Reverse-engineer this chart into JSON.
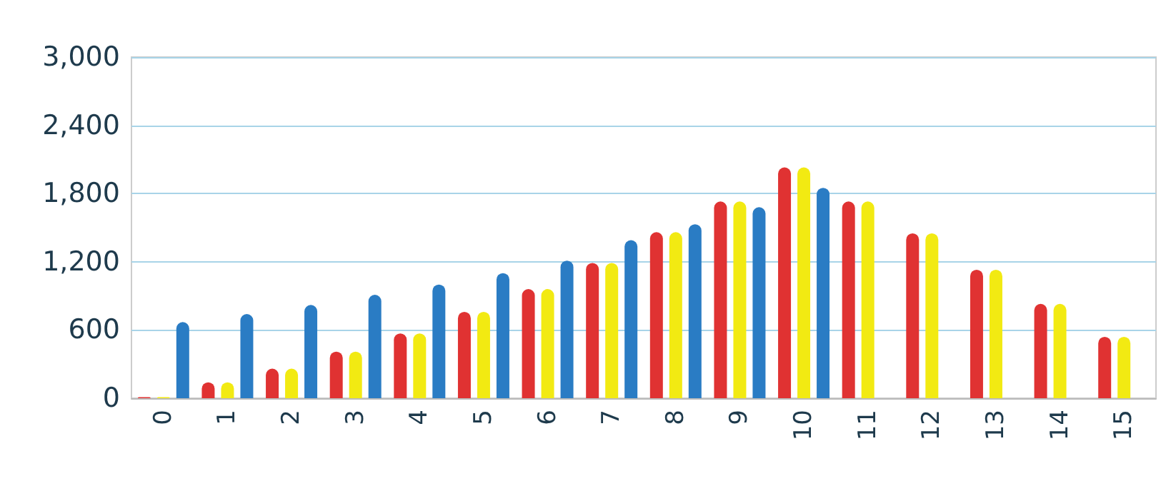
{
  "chart_data": {
    "type": "bar",
    "categories": [
      "0",
      "1",
      "2",
      "3",
      "4",
      "5",
      "6",
      "7",
      "8",
      "9",
      "10",
      "11",
      "12",
      "13",
      "14",
      "15"
    ],
    "series": [
      {
        "color": "#e03232",
        "values": [
          10,
          140,
          260,
          410,
          570,
          760,
          960,
          1190,
          1460,
          1730,
          2030,
          1730,
          1450,
          1130,
          830,
          540
        ]
      },
      {
        "color": "#f2ea12",
        "values": [
          10,
          140,
          260,
          410,
          570,
          760,
          960,
          1190,
          1460,
          1730,
          2030,
          1730,
          1450,
          1130,
          830,
          540
        ]
      },
      {
        "color": "#2a7cc4",
        "values": [
          670,
          740,
          820,
          910,
          1000,
          1100,
          1210,
          1390,
          1530,
          1680,
          1850,
          null,
          null,
          null,
          null,
          null
        ]
      }
    ],
    "ylim": [
      0,
      3000
    ],
    "yticks": [
      0,
      600,
      {
        "value": 1200,
        "label": "1,200"
      },
      {
        "value": 1800,
        "label": "1,800"
      },
      {
        "value": 2400,
        "label": "2,400"
      },
      {
        "value": 3000,
        "label": "3,000"
      }
    ],
    "grid": "y"
  }
}
